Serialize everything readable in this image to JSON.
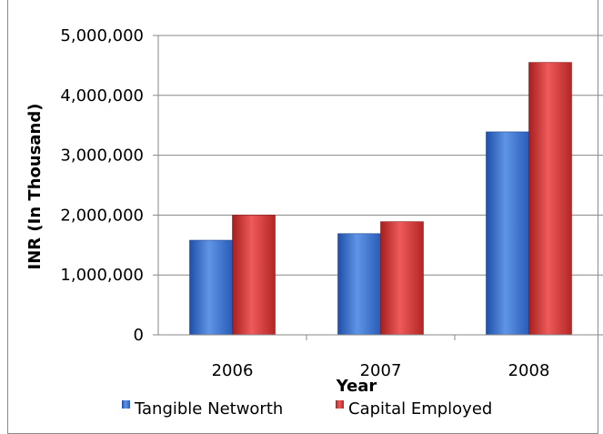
{
  "chart_data": {
    "type": "bar",
    "title": "",
    "xlabel": "Year",
    "ylabel": "INR (In Thousand)",
    "categories": [
      "2006",
      "2007",
      "2008"
    ],
    "series": [
      {
        "name": "Tangible Networth",
        "values": [
          1580000,
          1690000,
          3390000
        ],
        "color": "#2f66c8"
      },
      {
        "name": "Capital Employed",
        "values": [
          2000000,
          1890000,
          4550000
        ],
        "color": "#c62b2b"
      }
    ],
    "ylim": [
      0,
      5000000
    ],
    "yticks": [
      "0",
      "1,000,000",
      "2,000,000",
      "3,000,000",
      "4,000,000",
      "5,000,000"
    ],
    "ytick_values": [
      0,
      1000000,
      2000000,
      3000000,
      4000000,
      5000000
    ],
    "grid": true,
    "legend_position": "bottom"
  }
}
